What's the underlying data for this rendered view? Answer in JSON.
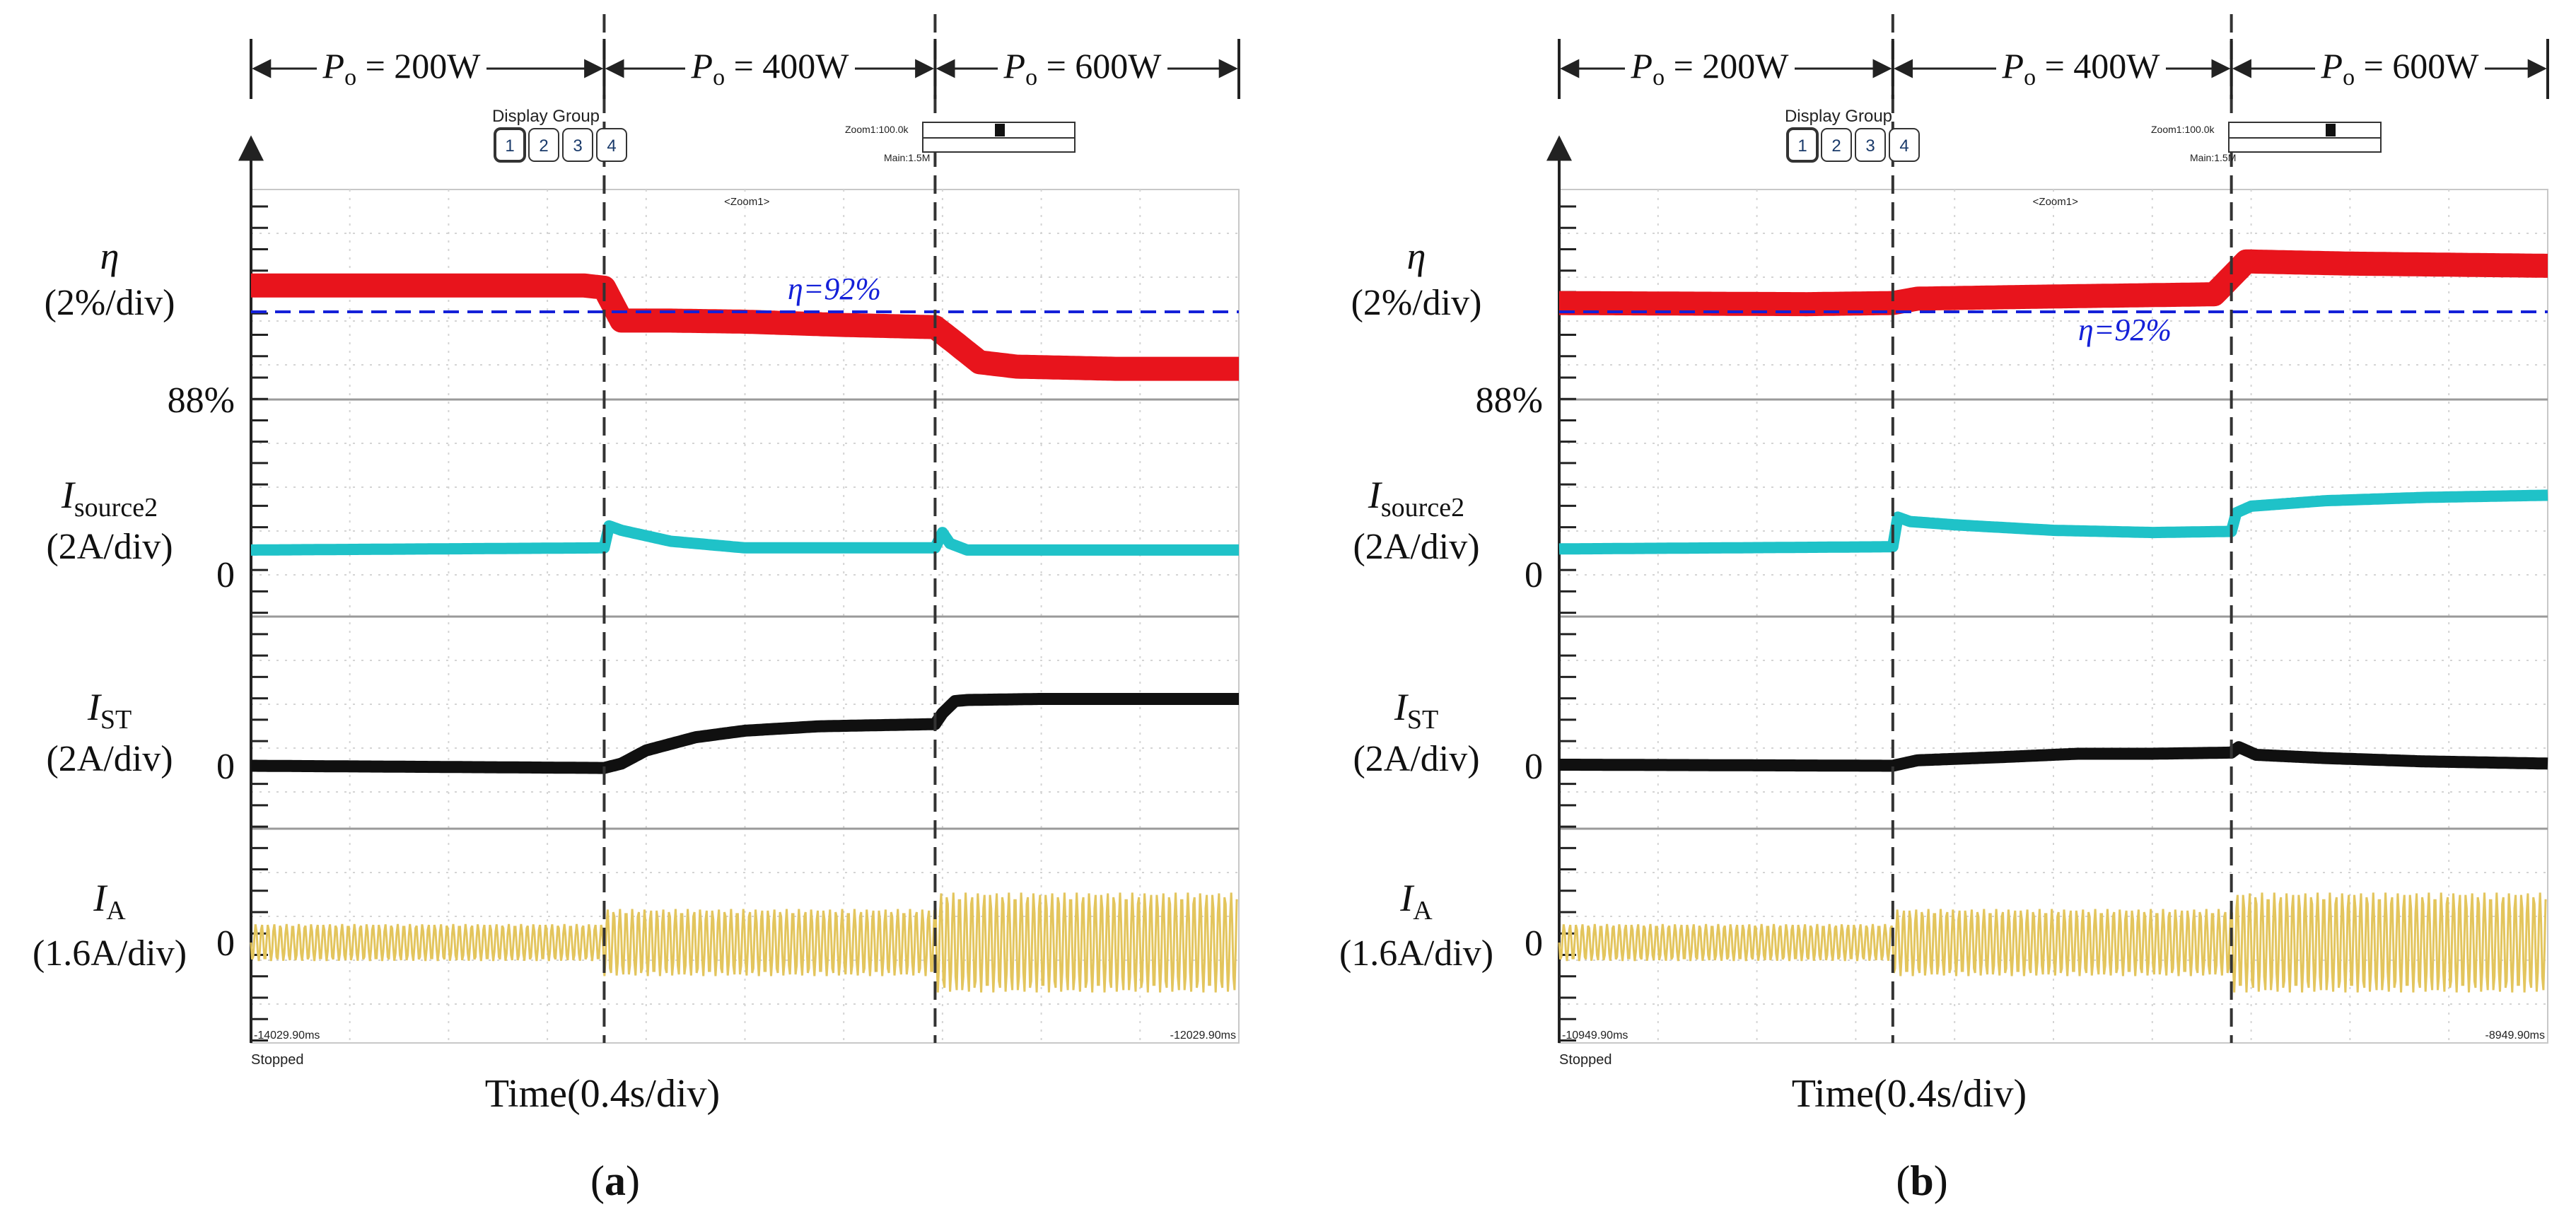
{
  "figure": {
    "panels": [
      {
        "caption": "(a)",
        "caption_letter": "a",
        "power_levels": [
          {
            "sub": "o",
            "rest": " = 200W"
          },
          {
            "sub": "o",
            "rest": " = 400W"
          },
          {
            "sub": "o",
            "rest": " = 600W"
          }
        ],
        "display_group": {
          "title": "Display Group",
          "buttons": [
            "1",
            "2",
            "3",
            "4"
          ]
        },
        "zoom_box": {
          "line1": "Zoom1:100.0k",
          "line2": "Main:1.5M"
        },
        "zoom_label": "<Zoom1>",
        "time_start": "-14029.90ms",
        "time_end": "-12029.90ms",
        "status": "Stopped",
        "xlabel": "Time(0.4s/div)",
        "eta_ref_label": "η=92%",
        "channels": [
          {
            "symbol": "η",
            "sub": "",
            "scale": "(2%/div)",
            "zero": "88%"
          },
          {
            "symbol": "I",
            "sub": "source2",
            "scale": "(2A/div)",
            "zero": "0"
          },
          {
            "symbol": "I",
            "sub": "ST",
            "scale": "(2A/div)",
            "zero": "0"
          },
          {
            "symbol": "I",
            "sub": "A",
            "scale": "(1.6A/div)",
            "zero": "0"
          }
        ]
      },
      {
        "caption": "(b)",
        "caption_letter": "b",
        "power_levels": [
          {
            "sub": "o",
            "rest": " = 200W"
          },
          {
            "sub": "o",
            "rest": " = 400W"
          },
          {
            "sub": "o",
            "rest": " = 600W"
          }
        ],
        "display_group": {
          "title": "Display Group",
          "buttons": [
            "1",
            "2",
            "3",
            "4"
          ]
        },
        "zoom_box": {
          "line1": "Zoom1:100.0k",
          "line2": "Main:1.5M"
        },
        "zoom_label": "<Zoom1>",
        "time_start": "-10949.90ms",
        "time_end": "-8949.90ms",
        "status": "Stopped",
        "xlabel": "Time(0.4s/div)",
        "eta_ref_label": "η=92%",
        "channels": [
          {
            "symbol": "η",
            "sub": "",
            "scale": "(2%/div)",
            "zero": "88%"
          },
          {
            "symbol": "I",
            "sub": "source2",
            "scale": "(2A/div)",
            "zero": "0"
          },
          {
            "symbol": "I",
            "sub": "ST",
            "scale": "(2A/div)",
            "zero": "0"
          },
          {
            "symbol": "I",
            "sub": "A",
            "scale": "(1.6A/div)",
            "zero": "0"
          }
        ]
      }
    ]
  },
  "chart_data": [
    {
      "type": "line",
      "title": "(a)",
      "xlabel": "Time(0.4s/div)",
      "x_unit": "s",
      "x_range": [
        0,
        4.0
      ],
      "segments": [
        {
          "label": "Po = 200W",
          "t_start": 0.0,
          "t_end": 1.43
        },
        {
          "label": "Po = 400W",
          "t_start": 1.43,
          "t_end": 2.77
        },
        {
          "label": "Po = 600W",
          "t_start": 2.77,
          "t_end": 4.0
        }
      ],
      "eta_reference": {
        "label": "η=92%",
        "value_percent": 92
      },
      "colors": {
        "eta": "#e8141c",
        "isource2": "#1fc2c8",
        "ist": "#101010",
        "ia": "#e3c55d",
        "ref": "#1420d8",
        "cursor": "#333333"
      },
      "series": [
        {
          "name": "η",
          "unit": "%",
          "per_div": 2,
          "zero_label": "88%",
          "x": [
            0,
            1.35,
            1.43,
            1.5,
            1.7,
            2.0,
            2.4,
            2.77,
            2.85,
            2.95,
            3.1,
            3.5,
            4.0
          ],
          "y": [
            93.2,
            93.2,
            93.1,
            91.6,
            91.6,
            91.55,
            91.4,
            91.3,
            90.6,
            89.7,
            89.5,
            89.4,
            89.4
          ]
        },
        {
          "name": "Isource2",
          "unit": "A",
          "per_div": 2,
          "zero_label": "0",
          "x": [
            0,
            1.43,
            1.45,
            1.5,
            1.7,
            2.0,
            2.4,
            2.77,
            2.8,
            2.83,
            2.9,
            3.2,
            4.0
          ],
          "y": [
            1.1,
            1.2,
            2.2,
            2.0,
            1.5,
            1.2,
            1.2,
            1.2,
            1.9,
            1.4,
            1.1,
            1.1,
            1.1
          ]
        },
        {
          "name": "IST",
          "unit": "A",
          "per_div": 2,
          "zero_label": "0",
          "x": [
            0,
            1.43,
            1.5,
            1.6,
            1.8,
            2.0,
            2.3,
            2.77,
            2.8,
            2.85,
            2.9,
            3.2,
            4.0
          ],
          "y": [
            0.0,
            -0.1,
            0.1,
            0.7,
            1.3,
            1.6,
            1.8,
            1.9,
            2.4,
            2.95,
            3.0,
            3.05,
            3.05
          ]
        },
        {
          "name": "IA",
          "unit": "A",
          "per_div": 1.6,
          "kind": "ac",
          "segments_amplitude": [
            1.35,
            2.45,
            3.65
          ]
        }
      ]
    },
    {
      "type": "line",
      "title": "(b)",
      "xlabel": "Time(0.4s/div)",
      "x_unit": "s",
      "x_range": [
        0,
        4.0
      ],
      "segments": [
        {
          "label": "Po = 200W",
          "t_start": 0.0,
          "t_end": 1.35
        },
        {
          "label": "Po = 400W",
          "t_start": 1.35,
          "t_end": 2.72
        },
        {
          "label": "Po = 600W",
          "t_start": 2.72,
          "t_end": 4.0
        }
      ],
      "eta_reference": {
        "label": "η=92%",
        "value_percent": 92
      },
      "colors": {
        "eta": "#e8141c",
        "isource2": "#1fc2c8",
        "ist": "#101010",
        "ia": "#e3c55d",
        "ref": "#1420d8",
        "cursor": "#333333"
      },
      "series": [
        {
          "name": "η",
          "unit": "%",
          "per_div": 2,
          "zero_label": "88%",
          "x": [
            0,
            1.0,
            1.35,
            1.45,
            2.0,
            2.65,
            2.72,
            2.78,
            3.2,
            4.0
          ],
          "y": [
            92.4,
            92.35,
            92.4,
            92.6,
            92.7,
            92.8,
            93.6,
            94.3,
            94.2,
            94.1
          ]
        },
        {
          "name": "Isource2",
          "unit": "A",
          "per_div": 2,
          "zero_label": "0",
          "x": [
            0,
            1.35,
            1.37,
            1.42,
            1.6,
            2.0,
            2.4,
            2.72,
            2.74,
            2.8,
            3.1,
            3.5,
            4.0
          ],
          "y": [
            1.15,
            1.25,
            2.6,
            2.4,
            2.25,
            2.0,
            1.9,
            1.95,
            2.8,
            3.1,
            3.35,
            3.5,
            3.6
          ]
        },
        {
          "name": "IST",
          "unit": "A",
          "per_div": 2,
          "zero_label": "0",
          "x": [
            0,
            1.35,
            1.45,
            1.8,
            2.1,
            2.4,
            2.72,
            2.75,
            2.82,
            3.1,
            3.5,
            4.0
          ],
          "y": [
            0.05,
            0.0,
            0.25,
            0.4,
            0.55,
            0.55,
            0.6,
            0.85,
            0.5,
            0.35,
            0.2,
            0.1
          ]
        },
        {
          "name": "IA",
          "unit": "A",
          "per_div": 1.6,
          "kind": "ac",
          "segments_amplitude": [
            1.35,
            2.45,
            3.65
          ]
        }
      ]
    }
  ]
}
